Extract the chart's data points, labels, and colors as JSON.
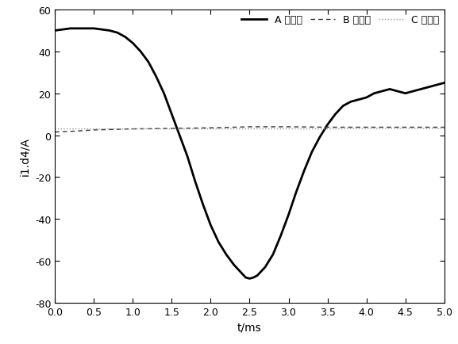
{
  "title": "",
  "xlabel": "t/ms",
  "ylabel": "i1.d4/A",
  "xlim": [
    0,
    5
  ],
  "ylim": [
    -80,
    60
  ],
  "xticks": [
    0,
    0.5,
    1,
    1.5,
    2,
    2.5,
    3,
    3.5,
    4,
    4.5,
    5
  ],
  "yticks": [
    -80,
    -60,
    -40,
    -20,
    0,
    20,
    40,
    60
  ],
  "legend_labels": [
    "A 相电流",
    "B 相电流",
    "C 相电流"
  ],
  "A_phase": {
    "t": [
      0,
      0.1,
      0.2,
      0.3,
      0.4,
      0.5,
      0.6,
      0.7,
      0.8,
      0.9,
      1.0,
      1.1,
      1.2,
      1.3,
      1.4,
      1.5,
      1.6,
      1.7,
      1.8,
      1.9,
      2.0,
      2.1,
      2.2,
      2.3,
      2.4,
      2.45,
      2.5,
      2.55,
      2.6,
      2.7,
      2.8,
      2.9,
      3.0,
      3.1,
      3.2,
      3.3,
      3.4,
      3.5,
      3.6,
      3.7,
      3.8,
      3.9,
      4.0,
      4.1,
      4.2,
      4.3,
      4.4,
      4.5,
      4.6,
      4.7,
      4.8,
      4.9,
      5.0
    ],
    "y": [
      50,
      50.5,
      51,
      51,
      51,
      51,
      50.5,
      50,
      49,
      47,
      44,
      40,
      35,
      28,
      20,
      10,
      0,
      -10,
      -22,
      -33,
      -43,
      -51,
      -57,
      -62,
      -66,
      -68,
      -68.5,
      -68,
      -67,
      -63,
      -57,
      -48,
      -38,
      -27,
      -17,
      -8,
      -1,
      5,
      10,
      14,
      16,
      17,
      18,
      20,
      21,
      22,
      21,
      20,
      21,
      22,
      23,
      24,
      25
    ],
    "color": "#000000",
    "linestyle": "solid",
    "linewidth": 2.0
  },
  "B_phase": {
    "t": [
      0,
      0.3,
      0.5,
      1.0,
      1.5,
      2.0,
      2.5,
      3.0,
      3.5,
      4.0,
      4.5,
      5.0
    ],
    "y": [
      1.5,
      2.0,
      2.5,
      3.0,
      3.2,
      3.5,
      4.0,
      4.0,
      3.8,
      3.8,
      3.8,
      3.8
    ],
    "color": "#333333",
    "linestyle": "dashed",
    "linewidth": 1.0,
    "dashes": [
      4,
      3
    ]
  },
  "C_phase": {
    "t": [
      0,
      0.5,
      1.0,
      1.5,
      2.0,
      2.5,
      3.0,
      3.5,
      4.0,
      4.5,
      5.0
    ],
    "y": [
      3.0,
      3.0,
      3.0,
      3.0,
      3.0,
      3.0,
      3.0,
      3.0,
      3.2,
      3.2,
      3.2
    ],
    "color": "#999999",
    "linestyle": "dotted",
    "linewidth": 1.0
  },
  "background_color": "#ffffff",
  "font_size": 10,
  "tick_fontsize": 9,
  "legend_fontsize": 9,
  "figsize": [
    5.77,
    4.35
  ],
  "dpi": 100
}
